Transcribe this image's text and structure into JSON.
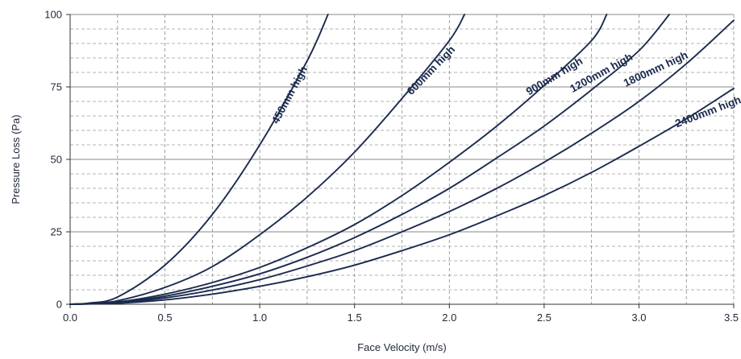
{
  "chart_data": {
    "type": "line",
    "title": "",
    "xlabel": "Face Velocity (m/s)",
    "ylabel": "Pressure Loss (Pa)",
    "xlim": [
      0,
      3.5
    ],
    "ylim": [
      0,
      100
    ],
    "x_ticks": [
      "0.0",
      "0.5",
      "1.0",
      "1.5",
      "2.0",
      "2.5",
      "3.0",
      "3.5"
    ],
    "y_ticks": [
      "0",
      "25",
      "50",
      "75",
      "100"
    ],
    "grid": true,
    "line_color": "#1b2a4e",
    "series": [
      {
        "name": "450mm high",
        "x": [
          0,
          0.1,
          0.25,
          0.5,
          0.75,
          1.0,
          1.25,
          1.36
        ],
        "y": [
          0,
          0.4,
          2.5,
          13.5,
          31,
          55,
          84,
          100
        ]
      },
      {
        "name": "600mm high",
        "x": [
          0,
          0.1,
          0.25,
          0.5,
          0.75,
          1.0,
          1.25,
          1.5,
          1.75,
          2.0,
          2.08
        ],
        "y": [
          0,
          0.2,
          1.2,
          5.8,
          13,
          24,
          37,
          52.5,
          71,
          91,
          100
        ]
      },
      {
        "name": "900mm high",
        "x": [
          0,
          0.25,
          0.5,
          0.75,
          1.0,
          1.25,
          1.5,
          1.75,
          2.0,
          2.25,
          2.5,
          2.75,
          2.83
        ],
        "y": [
          0,
          0.8,
          3.5,
          7.5,
          12.7,
          19.5,
          27.5,
          37.5,
          49,
          61.5,
          75.5,
          91,
          100
        ]
      },
      {
        "name": "1200mm high",
        "x": [
          0,
          0.25,
          0.5,
          0.75,
          1.0,
          1.25,
          1.5,
          1.75,
          2.0,
          2.25,
          2.5,
          2.75,
          3.0,
          3.16
        ],
        "y": [
          0,
          0.6,
          2.8,
          6.2,
          10.5,
          16.2,
          23,
          31,
          40,
          50.5,
          61.5,
          74,
          87.5,
          100
        ]
      },
      {
        "name": "1800mm high",
        "x": [
          0,
          0.25,
          0.5,
          0.75,
          1.0,
          1.25,
          1.5,
          1.75,
          2.0,
          2.25,
          2.5,
          2.75,
          3.0,
          3.25,
          3.5
        ],
        "y": [
          0,
          0.5,
          2.2,
          4.9,
          8.5,
          13.2,
          18.5,
          25,
          32,
          40,
          49,
          59,
          70,
          83,
          98
        ]
      },
      {
        "name": "2400mm high",
        "x": [
          0,
          0.25,
          0.5,
          0.75,
          1.0,
          1.25,
          1.5,
          1.75,
          2.0,
          2.25,
          2.5,
          2.75,
          3.0,
          3.25,
          3.5
        ],
        "y": [
          0,
          0.35,
          1.5,
          3.5,
          6.2,
          9.5,
          13.5,
          18.5,
          24,
          30.5,
          37.5,
          45.5,
          54.5,
          64,
          74.5
        ]
      }
    ]
  }
}
